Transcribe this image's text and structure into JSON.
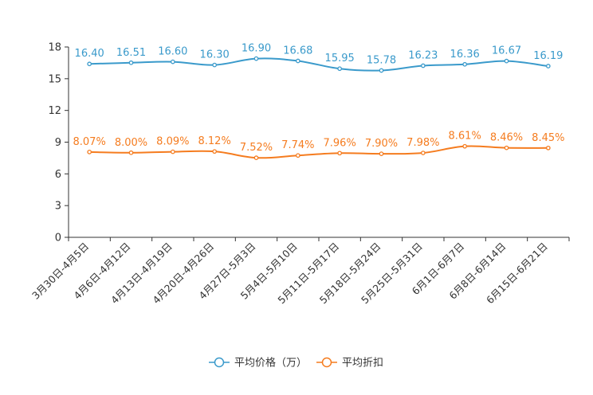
{
  "chart_data": {
    "type": "line",
    "categories": [
      "3月30日-4月5日",
      "4月6日-4月12日",
      "4月13日-4月19日",
      "4月20日-4月26日",
      "4月27日-5月3日",
      "5月4日-5月10日",
      "5月11日-5月17日",
      "5月18日-5月24日",
      "5月25日-5月31日",
      "6月1日-6月7日",
      "6月8日-6月14日",
      "6月15日-6月21日"
    ],
    "yticks": [
      "0",
      "3",
      "6",
      "9",
      "12",
      "15",
      "18"
    ],
    "ylim": [
      0,
      18
    ],
    "series": [
      {
        "name": "平均价格（万）",
        "color": "#3a9acb",
        "values": [
          16.4,
          16.51,
          16.6,
          16.3,
          16.9,
          16.68,
          15.95,
          15.78,
          16.23,
          16.36,
          16.67,
          16.19
        ],
        "labels": [
          "16.40",
          "16.51",
          "16.60",
          "16.30",
          "16.90",
          "16.68",
          "15.95",
          "15.78",
          "16.23",
          "16.36",
          "16.67",
          "16.19"
        ]
      },
      {
        "name": "平均折扣",
        "color": "#f57c1f",
        "values": [
          8.07,
          8.0,
          8.09,
          8.12,
          7.52,
          7.74,
          7.96,
          7.9,
          7.98,
          8.61,
          8.46,
          8.45
        ],
        "labels": [
          "8.07%",
          "8.00%",
          "8.09%",
          "8.12%",
          "7.52%",
          "7.74%",
          "7.96%",
          "7.90%",
          "7.98%",
          "8.61%",
          "8.46%",
          "8.45%"
        ]
      }
    ],
    "legend_position": "bottom-center",
    "grid": false
  }
}
